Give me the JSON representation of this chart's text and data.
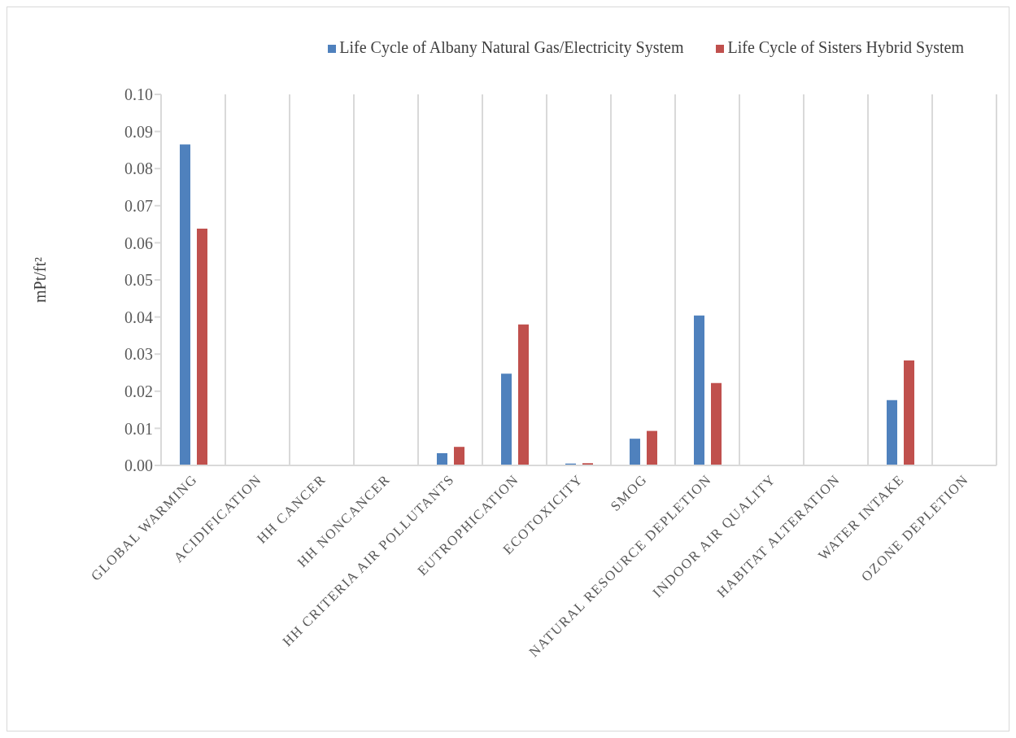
{
  "chart_data": {
    "type": "bar",
    "ylabel": "mPt/ft²",
    "categories": [
      "GLOBAL WARMING",
      "ACIDIFICATION",
      "HH CANCER",
      "HH NONCANCER",
      "HH CRITERIA AIR POLLUTANTS",
      "EUTROPHICATION",
      "ECOTOXICITY",
      "SMOG",
      "NATURAL RESOURCE DEPLETION",
      "INDOOR AIR QUALITY",
      "HABITAT  ALTERATION",
      "WATER INTAKE",
      "OZONE DEPLETION"
    ],
    "series": [
      {
        "name": "Life Cycle of Albany Natural Gas/Electricity System",
        "color": "#4f81bd",
        "values": [
          0.0865,
          0,
          0,
          0,
          0.0033,
          0.0247,
          0.0005,
          0.0072,
          0.0404,
          0,
          0,
          0.0176,
          0
        ]
      },
      {
        "name": "Life Cycle of Sisters Hybrid System",
        "color": "#c0504d",
        "values": [
          0.0638,
          0,
          0,
          0,
          0.005,
          0.038,
          0.0006,
          0.0093,
          0.0222,
          0,
          0,
          0.0283,
          0
        ]
      }
    ],
    "ylim": [
      0,
      0.1
    ],
    "yticks": [
      {
        "value": 0,
        "label": "0.00"
      },
      {
        "value": 0.01,
        "label": "0.01"
      },
      {
        "value": 0.02,
        "label": "0.02"
      },
      {
        "value": 0.03,
        "label": "0.03"
      },
      {
        "value": 0.04,
        "label": "0.04"
      },
      {
        "value": 0.05,
        "label": "0.05"
      },
      {
        "value": 0.06,
        "label": "0.06"
      },
      {
        "value": 0.07,
        "label": "0.07"
      },
      {
        "value": 0.08,
        "label": "0.08"
      },
      {
        "value": 0.09,
        "label": "0.09"
      },
      {
        "value": 0.1,
        "label": "0.10"
      }
    ],
    "grid": "x",
    "legend": "top right"
  }
}
